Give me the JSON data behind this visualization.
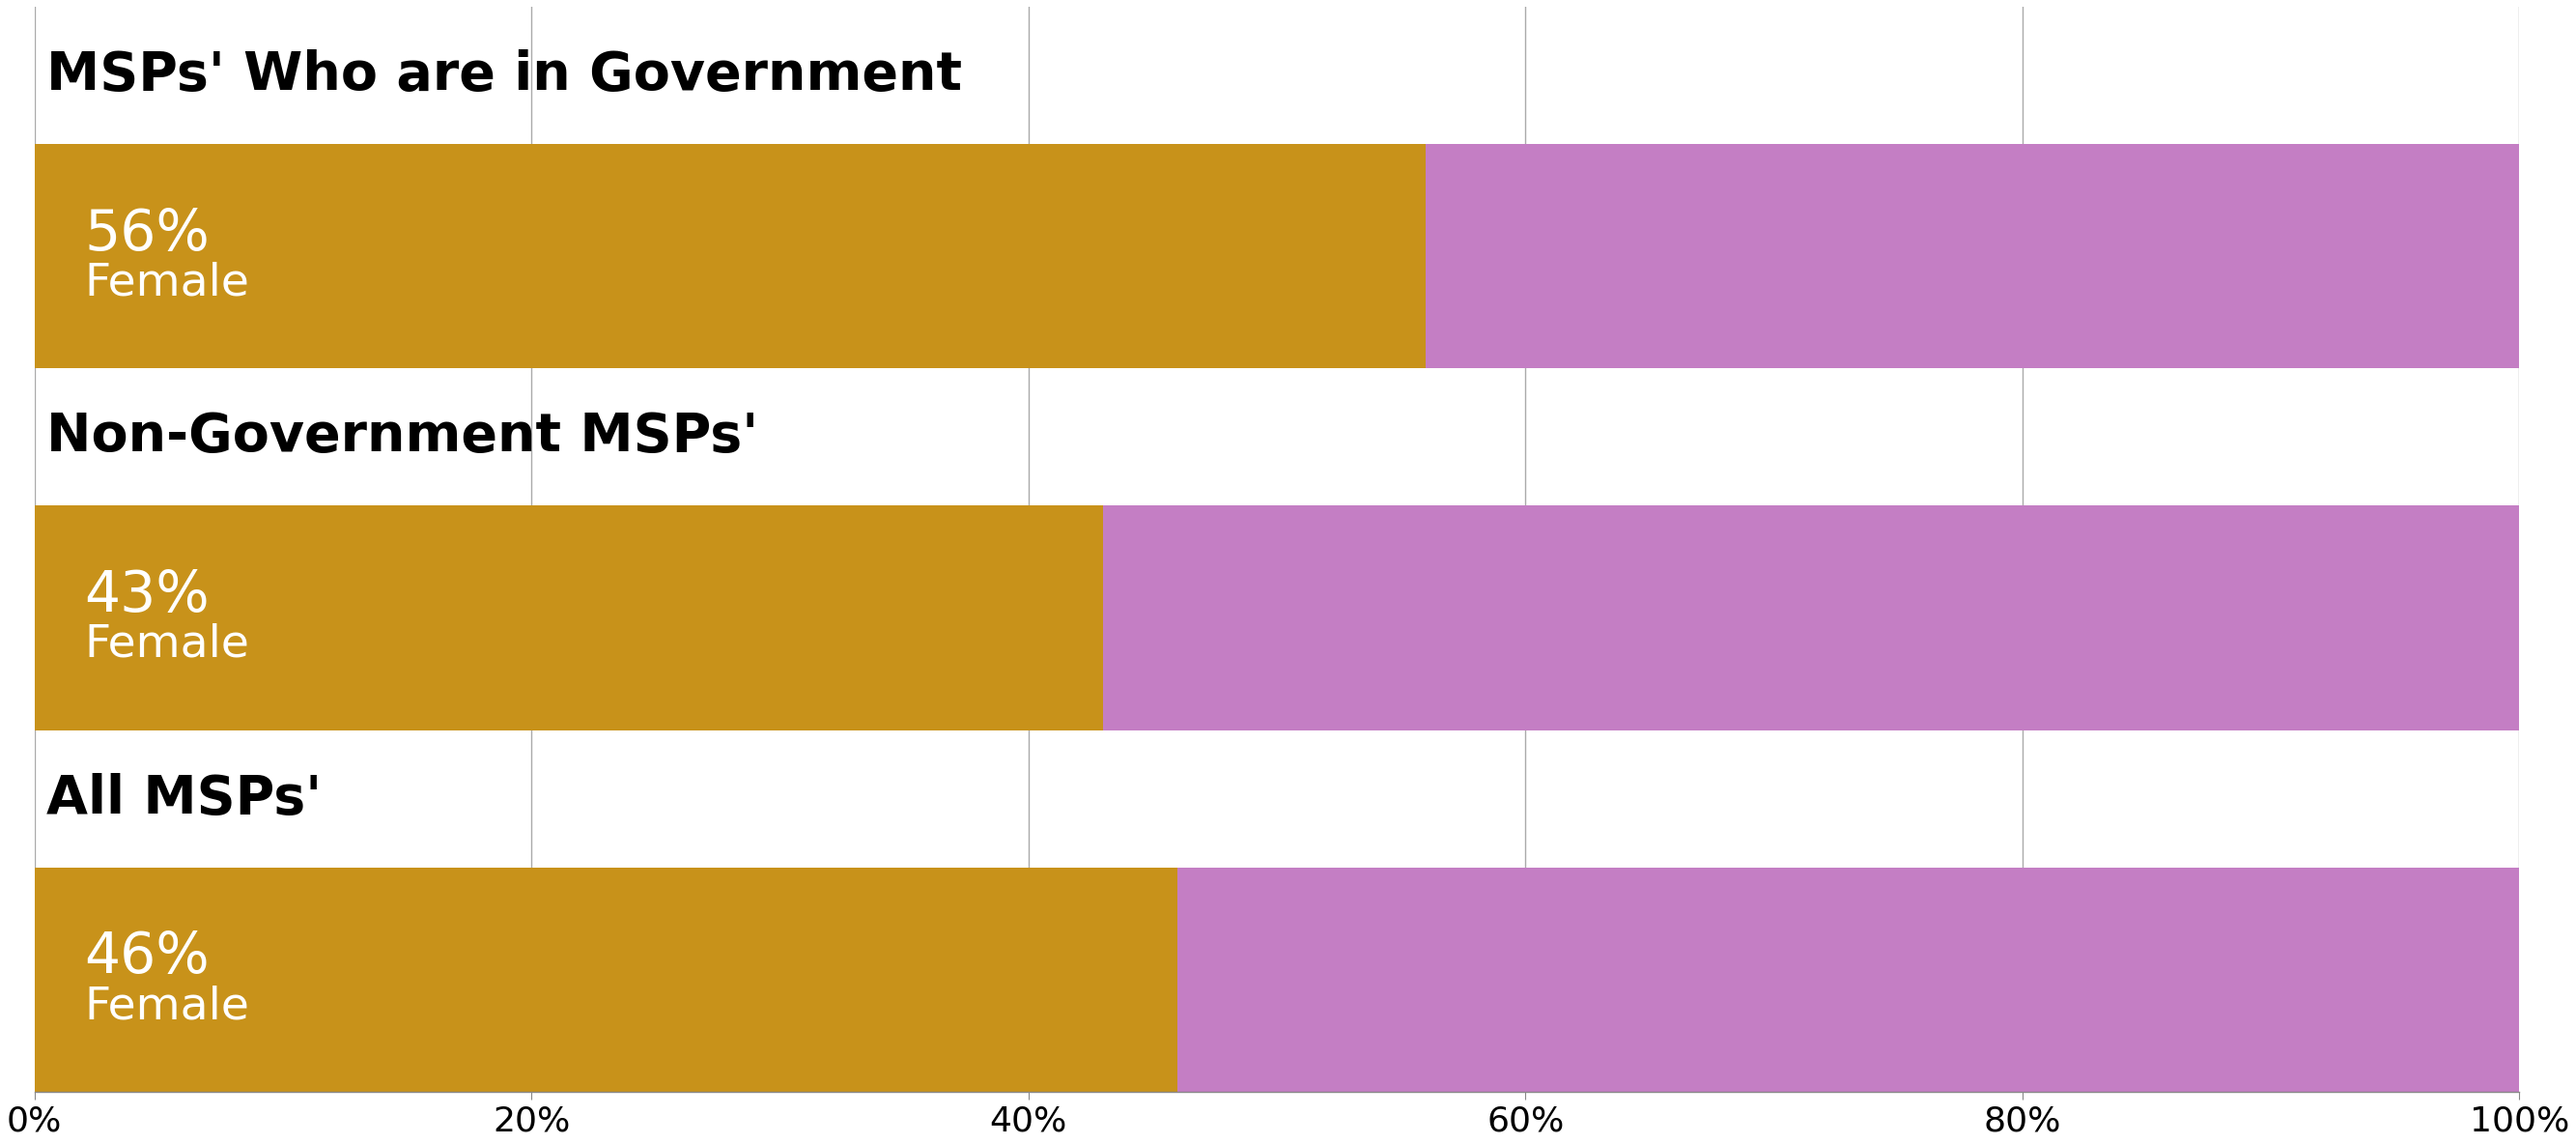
{
  "categories": [
    "MSPs' Who are in Government",
    "Non-Government MSPs'",
    "All MSPs'"
  ],
  "female_pct": [
    56,
    43,
    46
  ],
  "male_pct": [
    44,
    57,
    54
  ],
  "female_color": "#C8921A",
  "male_color": "#C47EC4",
  "text_color": "#ffffff",
  "title_color": "#000000",
  "background_color": "#ffffff",
  "label_pct_fontsize": 42,
  "label_text_fontsize": 34,
  "category_fontsize": 40,
  "tick_fontsize": 26,
  "xlim": [
    0,
    100
  ],
  "xticks": [
    0,
    20,
    40,
    60,
    80,
    100
  ],
  "xticklabels": [
    "0%",
    "20%",
    "40%",
    "60%",
    "80%",
    "100%"
  ],
  "grid_color": "#aaaaaa",
  "spine_color": "#888888"
}
